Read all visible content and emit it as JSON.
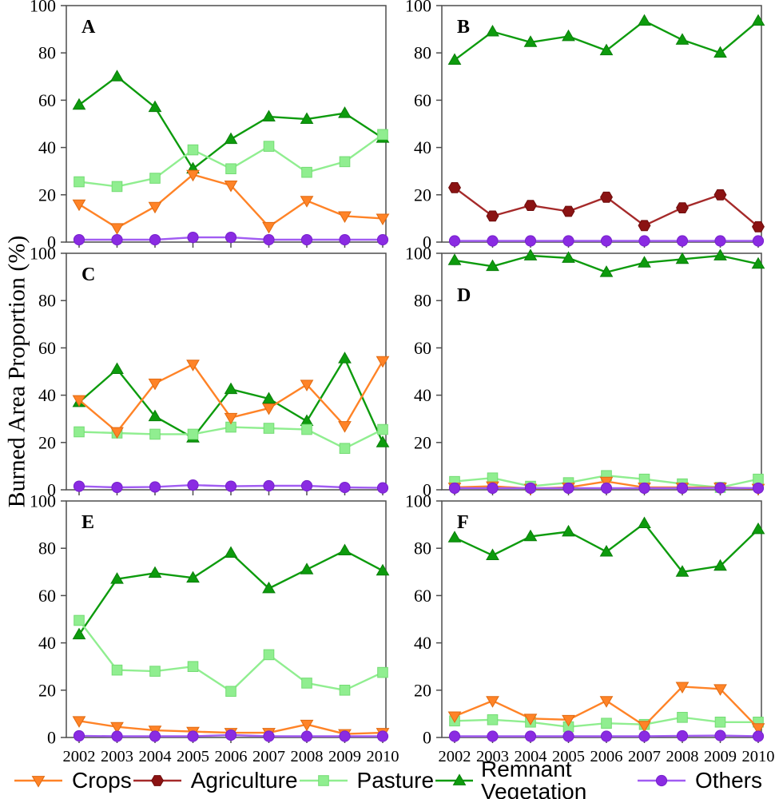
{
  "figure": {
    "y_axis_label": "Burned Area Proportion (%)",
    "y_ticks": [
      0,
      20,
      40,
      60,
      80,
      100
    ],
    "ylim": [
      0,
      100
    ],
    "years": [
      "2002",
      "2003",
      "2004",
      "2005",
      "2006",
      "2007",
      "2008",
      "2009",
      "2010"
    ]
  },
  "legend": {
    "items": [
      {
        "key": "crops",
        "label": "Crops"
      },
      {
        "key": "agriculture",
        "label": "Agriculture"
      },
      {
        "key": "pasture",
        "label": "Pasture"
      },
      {
        "key": "remnant",
        "label": "Remnant Vegetation"
      },
      {
        "key": "others",
        "label": "Others"
      }
    ]
  },
  "series_styles": {
    "crops": {
      "line": "#FF8327",
      "fill": "#FF8327",
      "edge": "#E06A10",
      "marker": "triangle-down"
    },
    "agriculture": {
      "line": "#A52A2A",
      "fill": "#8B1313",
      "edge": "#6E0D0D",
      "marker": "hexagon"
    },
    "pasture": {
      "line": "#90EE90",
      "fill": "#90EE90",
      "edge": "#74DC74",
      "marker": "square"
    },
    "remnant": {
      "line": "#0D9B0D",
      "fill": "#0D9B0D",
      "edge": "#0A7F0A",
      "marker": "triangle-up"
    },
    "others": {
      "line": "#A15CF2",
      "fill": "#8A2BE2",
      "edge": "#7722CC",
      "marker": "circle"
    }
  },
  "chart_data": [
    {
      "type": "line",
      "panel": "A",
      "ylim": [
        0,
        100
      ],
      "categories": [
        "2002",
        "2003",
        "2004",
        "2005",
        "2006",
        "2007",
        "2008",
        "2009",
        "2010"
      ],
      "series": [
        {
          "key": "remnant",
          "name": "Remnant Vegetation",
          "values": [
            58,
            70,
            57,
            31,
            43.5,
            53,
            52,
            54.5,
            44
          ]
        },
        {
          "key": "pasture",
          "name": "Pasture",
          "values": [
            25.5,
            23.5,
            27,
            39,
            31,
            40.5,
            29.5,
            34,
            45.5
          ]
        },
        {
          "key": "crops",
          "name": "Crops",
          "values": [
            16,
            6,
            15,
            28.5,
            24,
            6.5,
            17.5,
            11,
            10
          ]
        },
        {
          "key": "others",
          "name": "Others",
          "values": [
            1,
            1,
            1,
            2,
            2,
            1,
            1,
            1,
            1
          ]
        }
      ]
    },
    {
      "type": "line",
      "panel": "B",
      "ylim": [
        0,
        100
      ],
      "categories": [
        "2002",
        "2003",
        "2004",
        "2005",
        "2006",
        "2007",
        "2008",
        "2009",
        "2010"
      ],
      "series": [
        {
          "key": "remnant",
          "name": "Remnant Vegetation",
          "values": [
            77,
            89,
            84.5,
            87,
            81,
            93.5,
            85.5,
            80,
            93.5
          ]
        },
        {
          "key": "agriculture",
          "name": "Agriculture",
          "values": [
            23,
            11,
            15.5,
            13,
            19,
            7,
            14.5,
            20,
            6.5
          ]
        },
        {
          "key": "others",
          "name": "Others",
          "values": [
            0.5,
            0.5,
            0.5,
            0.5,
            0.5,
            0.5,
            0.5,
            0.5,
            0.5
          ]
        }
      ]
    },
    {
      "type": "line",
      "panel": "C",
      "ylim": [
        0,
        100
      ],
      "categories": [
        "2002",
        "2003",
        "2004",
        "2005",
        "2006",
        "2007",
        "2008",
        "2009",
        "2010"
      ],
      "series": [
        {
          "key": "remnant",
          "name": "Remnant Vegetation",
          "values": [
            37,
            51,
            31,
            22,
            42.5,
            38.5,
            29,
            55.5,
            20
          ]
        },
        {
          "key": "pasture",
          "name": "Pasture",
          "values": [
            24.5,
            24,
            23.5,
            23.5,
            26.5,
            26,
            25.5,
            17.5,
            25.5
          ]
        },
        {
          "key": "crops",
          "name": "Crops",
          "values": [
            38,
            24.5,
            45,
            53,
            30.5,
            34.5,
            44.5,
            27,
            54.5
          ]
        },
        {
          "key": "others",
          "name": "Others",
          "values": [
            1.5,
            1,
            1.2,
            2,
            1.5,
            1.7,
            1.7,
            1,
            0.8
          ]
        }
      ]
    },
    {
      "type": "line",
      "panel": "D",
      "ylim": [
        0,
        100
      ],
      "categories": [
        "2002",
        "2003",
        "2004",
        "2005",
        "2006",
        "2007",
        "2008",
        "2009",
        "2010"
      ],
      "series": [
        {
          "key": "remnant",
          "name": "Remnant Vegetation",
          "values": [
            97,
            94.5,
            99,
            98,
            92,
            96,
            97.5,
            99,
            95.5
          ]
        },
        {
          "key": "pasture",
          "name": "Pasture",
          "values": [
            3.5,
            5,
            1.5,
            3,
            6,
            4.5,
            2.5,
            1,
            4.5
          ]
        },
        {
          "key": "crops",
          "name": "Crops",
          "values": [
            1,
            1.5,
            0.5,
            1,
            3.5,
            1,
            1,
            1,
            0.5
          ]
        },
        {
          "key": "others",
          "name": "Others",
          "values": [
            0.7,
            0.7,
            0.7,
            0.7,
            0.7,
            0.7,
            0.7,
            0.8,
            0.7
          ]
        }
      ]
    },
    {
      "type": "line",
      "panel": "E",
      "ylim": [
        0,
        100
      ],
      "categories": [
        "2002",
        "2003",
        "2004",
        "2005",
        "2006",
        "2007",
        "2008",
        "2009",
        "2010"
      ],
      "series": [
        {
          "key": "remnant",
          "name": "Remnant Vegetation",
          "values": [
            43.5,
            67,
            69.5,
            67.5,
            78,
            63,
            71,
            79,
            70.5
          ]
        },
        {
          "key": "pasture",
          "name": "Pasture",
          "values": [
            49.5,
            28.5,
            28,
            30,
            19.5,
            35,
            23,
            20,
            27.5
          ]
        },
        {
          "key": "crops",
          "name": "Crops",
          "values": [
            7,
            4.5,
            3,
            2.5,
            2,
            2,
            5.5,
            1.5,
            2
          ]
        },
        {
          "key": "others",
          "name": "Others",
          "values": [
            0.7,
            0.5,
            0.5,
            0.5,
            1,
            0.5,
            0.5,
            0.5,
            0.5
          ]
        }
      ]
    },
    {
      "type": "line",
      "panel": "F",
      "ylim": [
        0,
        100
      ],
      "categories": [
        "2002",
        "2003",
        "2004",
        "2005",
        "2006",
        "2007",
        "2008",
        "2009",
        "2010"
      ],
      "series": [
        {
          "key": "remnant",
          "name": "Remnant Vegetation",
          "values": [
            84.5,
            77,
            85,
            87,
            78.5,
            90.5,
            70,
            72.5,
            88
          ]
        },
        {
          "key": "pasture",
          "name": "Pasture",
          "values": [
            7,
            7.5,
            6.5,
            4.5,
            6,
            5.5,
            8.5,
            6.5,
            6.5
          ]
        },
        {
          "key": "crops",
          "name": "Crops",
          "values": [
            9,
            15.5,
            8,
            7.5,
            15.5,
            5,
            21.5,
            20.5,
            4
          ]
        },
        {
          "key": "others",
          "name": "Others",
          "values": [
            0.5,
            0.5,
            0.5,
            0.5,
            0.5,
            0.5,
            0.7,
            0.8,
            0.5
          ]
        }
      ]
    }
  ]
}
